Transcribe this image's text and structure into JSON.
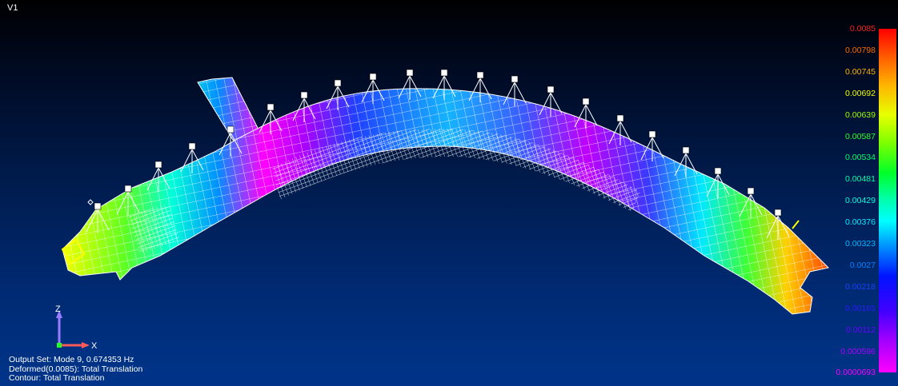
{
  "viewport": {
    "title": "V1"
  },
  "legend": {
    "labels": [
      "0.0085",
      "0.00798",
      "0.00745",
      "0.00692",
      "0.00639",
      "0.00587",
      "0.00534",
      "0.00481",
      "0.00429",
      "0.00376",
      "0.00323",
      "0.0027",
      "0.00218",
      "0.00165",
      "0.00112",
      "0.000596",
      "0.0000693"
    ],
    "label_colors": [
      "#ff2020",
      "#ff6a00",
      "#ffb400",
      "#f0ff00",
      "#9cff00",
      "#2cff2c",
      "#00ff66",
      "#00ffa8",
      "#00ffe0",
      "#00f0ff",
      "#00b8ff",
      "#0080ff",
      "#1a40ff",
      "#2c1aff",
      "#6a00ff",
      "#b000ff",
      "#ff00ff"
    ]
  },
  "triad": {
    "z_label": "Z",
    "x_label": "X"
  },
  "status": {
    "line1": "Output Set: Mode 9, 0.674353 Hz",
    "line2": "Deformed(0.0085): Total Translation",
    "line3": "Contour: Total Translation"
  },
  "colors": {
    "mesh": "#ffffff",
    "background_top": "#000000",
    "background_bottom": "#00348a"
  }
}
